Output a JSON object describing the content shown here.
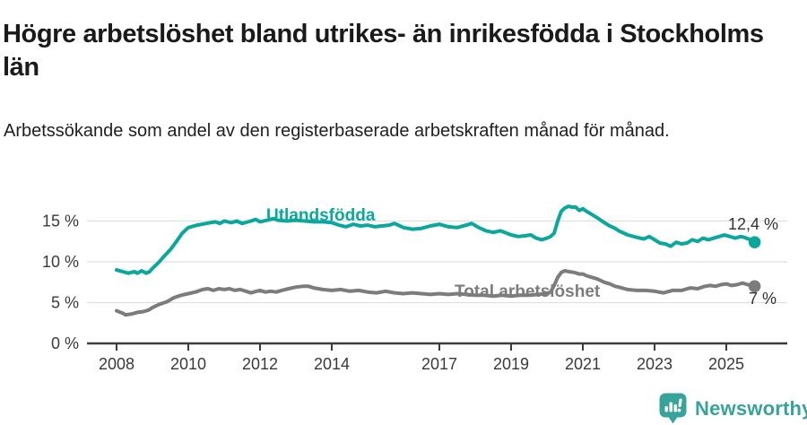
{
  "chart_data": {
    "type": "line",
    "title": "Högre arbetslöshet bland utrikes- än inrikesfödda i Stockholms län",
    "subtitle": "Arbetssökande som andel av den registerbaserade arbetskraften månad för månad.",
    "unit": "%",
    "grid": "horizontal-only",
    "legend_position": "inline-labels-on-lines",
    "x_axis": {
      "ticks": [
        2008,
        2010,
        2012,
        2014,
        2017,
        2019,
        2021,
        2023,
        2025
      ],
      "tick_labels": [
        "2008",
        "2010",
        "2012",
        "2014",
        "2017",
        "2019",
        "2021",
        "2023",
        "2025"
      ],
      "range": [
        2007.2,
        2026.4
      ]
    },
    "y_axis": {
      "ticks": [
        0,
        5,
        10,
        15
      ],
      "tick_labels": [
        "0 %",
        "5 %",
        "10 %",
        "15 %"
      ],
      "range": [
        0,
        18.5
      ]
    },
    "series": [
      {
        "name": "Utlandsfödda",
        "color": "#0ba79d",
        "end_value": 12.4,
        "end_label": "12,4 %",
        "points": [
          [
            2008.0,
            9.0
          ],
          [
            2008.17,
            8.8
          ],
          [
            2008.33,
            8.6
          ],
          [
            2008.5,
            8.8
          ],
          [
            2008.58,
            8.6
          ],
          [
            2008.7,
            8.9
          ],
          [
            2008.83,
            8.6
          ],
          [
            2008.92,
            8.8
          ],
          [
            2009.0,
            9.2
          ],
          [
            2009.17,
            9.9
          ],
          [
            2009.33,
            10.7
          ],
          [
            2009.5,
            11.5
          ],
          [
            2009.67,
            12.5
          ],
          [
            2009.83,
            13.5
          ],
          [
            2010.0,
            14.2
          ],
          [
            2010.25,
            14.5
          ],
          [
            2010.5,
            14.7
          ],
          [
            2010.75,
            14.9
          ],
          [
            2010.88,
            14.7
          ],
          [
            2011.0,
            15.0
          ],
          [
            2011.2,
            14.8
          ],
          [
            2011.35,
            15.0
          ],
          [
            2011.5,
            14.7
          ],
          [
            2011.75,
            15.0
          ],
          [
            2011.88,
            15.2
          ],
          [
            2012.0,
            14.9
          ],
          [
            2012.2,
            15.1
          ],
          [
            2012.38,
            15.3
          ],
          [
            2012.5,
            15.1
          ],
          [
            2012.75,
            15.0
          ],
          [
            2013.0,
            15.1
          ],
          [
            2013.25,
            15.0
          ],
          [
            2013.5,
            14.9
          ],
          [
            2013.75,
            14.9
          ],
          [
            2014.0,
            14.8
          ],
          [
            2014.2,
            14.5
          ],
          [
            2014.4,
            14.3
          ],
          [
            2014.6,
            14.6
          ],
          [
            2014.8,
            14.4
          ],
          [
            2015.0,
            14.5
          ],
          [
            2015.2,
            14.3
          ],
          [
            2015.4,
            14.4
          ],
          [
            2015.6,
            14.5
          ],
          [
            2015.75,
            14.7
          ],
          [
            2016.0,
            14.2
          ],
          [
            2016.25,
            14.0
          ],
          [
            2016.5,
            14.1
          ],
          [
            2016.75,
            14.4
          ],
          [
            2017.0,
            14.6
          ],
          [
            2017.25,
            14.3
          ],
          [
            2017.5,
            14.2
          ],
          [
            2017.75,
            14.5
          ],
          [
            2017.9,
            14.7
          ],
          [
            2018.1,
            14.2
          ],
          [
            2018.3,
            13.8
          ],
          [
            2018.5,
            13.6
          ],
          [
            2018.7,
            13.8
          ],
          [
            2019.0,
            13.3
          ],
          [
            2019.2,
            13.1
          ],
          [
            2019.4,
            13.2
          ],
          [
            2019.55,
            13.3
          ],
          [
            2019.7,
            12.9
          ],
          [
            2019.85,
            12.7
          ],
          [
            2020.0,
            12.9
          ],
          [
            2020.1,
            13.1
          ],
          [
            2020.2,
            13.5
          ],
          [
            2020.3,
            15.0
          ],
          [
            2020.4,
            16.2
          ],
          [
            2020.5,
            16.6
          ],
          [
            2020.6,
            16.8
          ],
          [
            2020.7,
            16.7
          ],
          [
            2020.8,
            16.7
          ],
          [
            2020.9,
            16.3
          ],
          [
            2021.0,
            16.5
          ],
          [
            2021.1,
            16.2
          ],
          [
            2021.25,
            15.8
          ],
          [
            2021.4,
            15.4
          ],
          [
            2021.5,
            15.1
          ],
          [
            2021.6,
            14.8
          ],
          [
            2021.75,
            14.4
          ],
          [
            2021.9,
            14.1
          ],
          [
            2022.0,
            13.8
          ],
          [
            2022.25,
            13.3
          ],
          [
            2022.5,
            13.0
          ],
          [
            2022.7,
            12.8
          ],
          [
            2022.85,
            13.1
          ],
          [
            2023.0,
            12.7
          ],
          [
            2023.15,
            12.3
          ],
          [
            2023.3,
            12.2
          ],
          [
            2023.45,
            11.9
          ],
          [
            2023.6,
            12.4
          ],
          [
            2023.75,
            12.2
          ],
          [
            2023.9,
            12.3
          ],
          [
            2024.05,
            12.7
          ],
          [
            2024.2,
            12.5
          ],
          [
            2024.35,
            12.9
          ],
          [
            2024.5,
            12.7
          ],
          [
            2024.65,
            12.9
          ],
          [
            2024.8,
            13.1
          ],
          [
            2024.95,
            13.3
          ],
          [
            2025.1,
            13.1
          ],
          [
            2025.25,
            12.9
          ],
          [
            2025.4,
            13.1
          ],
          [
            2025.5,
            13.0
          ],
          [
            2025.62,
            12.8
          ],
          [
            2025.79,
            12.4
          ]
        ]
      },
      {
        "name": "Total arbetslöshet",
        "color": "#7c7c7c",
        "end_value": 7.0,
        "end_label": "7 %",
        "points": [
          [
            2008.0,
            4.0
          ],
          [
            2008.17,
            3.7
          ],
          [
            2008.25,
            3.5
          ],
          [
            2008.42,
            3.6
          ],
          [
            2008.58,
            3.8
          ],
          [
            2008.75,
            3.9
          ],
          [
            2008.9,
            4.1
          ],
          [
            2009.0,
            4.4
          ],
          [
            2009.2,
            4.8
          ],
          [
            2009.4,
            5.1
          ],
          [
            2009.6,
            5.6
          ],
          [
            2009.8,
            5.9
          ],
          [
            2010.0,
            6.1
          ],
          [
            2010.2,
            6.3
          ],
          [
            2010.4,
            6.6
          ],
          [
            2010.55,
            6.7
          ],
          [
            2010.7,
            6.5
          ],
          [
            2010.85,
            6.7
          ],
          [
            2011.0,
            6.6
          ],
          [
            2011.15,
            6.7
          ],
          [
            2011.3,
            6.5
          ],
          [
            2011.45,
            6.6
          ],
          [
            2011.6,
            6.4
          ],
          [
            2011.75,
            6.2
          ],
          [
            2011.9,
            6.4
          ],
          [
            2012.0,
            6.5
          ],
          [
            2012.15,
            6.3
          ],
          [
            2012.3,
            6.4
          ],
          [
            2012.45,
            6.3
          ],
          [
            2012.6,
            6.5
          ],
          [
            2012.8,
            6.7
          ],
          [
            2013.0,
            6.9
          ],
          [
            2013.2,
            7.0
          ],
          [
            2013.35,
            7.0
          ],
          [
            2013.5,
            6.8
          ],
          [
            2013.75,
            6.6
          ],
          [
            2014.0,
            6.5
          ],
          [
            2014.25,
            6.6
          ],
          [
            2014.5,
            6.4
          ],
          [
            2014.75,
            6.5
          ],
          [
            2015.0,
            6.3
          ],
          [
            2015.25,
            6.2
          ],
          [
            2015.5,
            6.4
          ],
          [
            2015.75,
            6.2
          ],
          [
            2016.0,
            6.1
          ],
          [
            2016.25,
            6.2
          ],
          [
            2016.5,
            6.1
          ],
          [
            2016.75,
            6.0
          ],
          [
            2017.0,
            6.1
          ],
          [
            2017.25,
            6.0
          ],
          [
            2017.5,
            6.1
          ],
          [
            2017.75,
            6.0
          ],
          [
            2018.0,
            5.9
          ],
          [
            2018.25,
            5.9
          ],
          [
            2018.5,
            5.8
          ],
          [
            2018.75,
            5.9
          ],
          [
            2019.0,
            5.8
          ],
          [
            2019.25,
            5.9
          ],
          [
            2019.5,
            5.9
          ],
          [
            2019.75,
            6.0
          ],
          [
            2020.0,
            6.1
          ],
          [
            2020.1,
            6.3
          ],
          [
            2020.2,
            7.1
          ],
          [
            2020.3,
            8.1
          ],
          [
            2020.4,
            8.7
          ],
          [
            2020.5,
            8.9
          ],
          [
            2020.6,
            8.8
          ],
          [
            2020.75,
            8.7
          ],
          [
            2020.9,
            8.5
          ],
          [
            2021.0,
            8.5
          ],
          [
            2021.1,
            8.3
          ],
          [
            2021.25,
            8.1
          ],
          [
            2021.4,
            7.9
          ],
          [
            2021.5,
            7.7
          ],
          [
            2021.6,
            7.5
          ],
          [
            2021.75,
            7.3
          ],
          [
            2021.9,
            7.0
          ],
          [
            2022.0,
            6.9
          ],
          [
            2022.25,
            6.6
          ],
          [
            2022.5,
            6.5
          ],
          [
            2022.75,
            6.5
          ],
          [
            2023.0,
            6.4
          ],
          [
            2023.25,
            6.2
          ],
          [
            2023.5,
            6.5
          ],
          [
            2023.75,
            6.5
          ],
          [
            2024.0,
            6.8
          ],
          [
            2024.2,
            6.7
          ],
          [
            2024.4,
            7.0
          ],
          [
            2024.55,
            7.1
          ],
          [
            2024.7,
            7.0
          ],
          [
            2024.85,
            7.2
          ],
          [
            2025.0,
            7.3
          ],
          [
            2025.15,
            7.1
          ],
          [
            2025.3,
            7.2
          ],
          [
            2025.45,
            7.4
          ],
          [
            2025.6,
            7.2
          ],
          [
            2025.79,
            7.0
          ]
        ]
      }
    ]
  },
  "colors": {
    "series_foreign_born": "#0ba79d",
    "series_total": "#7c7c7c",
    "annotation": "#333333",
    "axis": "#3d3d3d",
    "grid": "#e0e0e0",
    "tick_label": "#3a3a3a",
    "brand": "#38a39a"
  },
  "footer": {
    "brand": "Newsworthy"
  }
}
